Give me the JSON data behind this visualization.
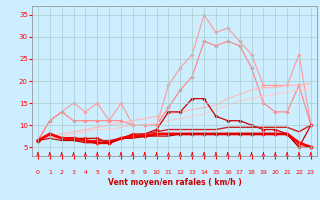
{
  "x": [
    0,
    1,
    2,
    3,
    4,
    5,
    6,
    7,
    8,
    9,
    10,
    11,
    12,
    13,
    14,
    15,
    16,
    17,
    18,
    19,
    20,
    21,
    22,
    23
  ],
  "series": [
    {
      "name": "line1_light_pink_markers",
      "color": "#ff9999",
      "linewidth": 0.8,
      "marker": "D",
      "markersize": 1.8,
      "y": [
        6.5,
        11,
        13,
        15,
        13,
        15,
        11,
        15,
        10,
        10,
        10,
        19,
        23,
        26,
        35,
        31,
        32,
        29,
        26,
        19,
        19,
        19,
        26,
        10
      ]
    },
    {
      "name": "line2_medium_pink_markers",
      "color": "#ff8080",
      "linewidth": 0.8,
      "marker": "D",
      "markersize": 1.8,
      "y": [
        6.5,
        11,
        13,
        11,
        11,
        11,
        11,
        11,
        10,
        10,
        10,
        14,
        18,
        21,
        29,
        28,
        29,
        28,
        23,
        15,
        13,
        13,
        19,
        10
      ]
    },
    {
      "name": "line3_diagonal_light",
      "color": "#ffbbbb",
      "linewidth": 0.9,
      "marker": null,
      "y": [
        6.5,
        7.5,
        8,
        8.5,
        9,
        9.5,
        10,
        10.5,
        11,
        11.5,
        12,
        12.5,
        13,
        13.5,
        14,
        14.5,
        16,
        17,
        18,
        18.5,
        18.5,
        19,
        19,
        19.5
      ]
    },
    {
      "name": "line4_diagonal_lighter",
      "color": "#ffcccc",
      "linewidth": 0.8,
      "marker": null,
      "y": [
        6.5,
        7,
        7.5,
        8,
        8.5,
        9,
        9,
        9.5,
        10,
        10,
        10.5,
        11,
        11.5,
        12,
        12.5,
        13.5,
        14.5,
        15.5,
        16,
        16.5,
        17,
        17.5,
        18,
        18
      ]
    },
    {
      "name": "line5_dark_red_markers",
      "color": "#cc0000",
      "linewidth": 0.9,
      "marker": "D",
      "markersize": 1.8,
      "y": [
        6.5,
        8,
        7,
        7,
        7,
        7,
        6,
        7,
        8,
        8,
        9,
        13,
        13,
        16,
        16,
        12,
        11,
        11,
        10,
        9,
        9,
        8,
        5,
        10
      ]
    },
    {
      "name": "line6_dark_flat",
      "color": "#cc2222",
      "linewidth": 1.0,
      "marker": null,
      "y": [
        6.5,
        8,
        7,
        6.5,
        6.5,
        6.5,
        6.5,
        7,
        7.5,
        8,
        8.5,
        9,
        9,
        9,
        9,
        9,
        9.5,
        9.5,
        9.5,
        9.5,
        9.5,
        9.5,
        8.5,
        10
      ]
    },
    {
      "name": "line7_bold_red_markers",
      "color": "#ff0000",
      "linewidth": 2.0,
      "marker": "D",
      "markersize": 2.2,
      "y": [
        6.5,
        8,
        7,
        7,
        6.5,
        6,
        6,
        7,
        7.5,
        7.5,
        8,
        8,
        8,
        8,
        8,
        8,
        8,
        8,
        8,
        8,
        8,
        8,
        6,
        5
      ]
    },
    {
      "name": "line8_bottom_thin",
      "color": "#bb0000",
      "linewidth": 0.8,
      "marker": null,
      "y": [
        6.5,
        7,
        6.5,
        6.5,
        6,
        6,
        6,
        7,
        7,
        7.5,
        7.5,
        7.5,
        8,
        8,
        8,
        8,
        8,
        8,
        8,
        8,
        8,
        8,
        5,
        5
      ]
    }
  ],
  "xlabel": "Vent moyen/en rafales ( km/h )",
  "ylim": [
    3,
    37
  ],
  "xlim": [
    -0.5,
    23.5
  ],
  "yticks": [
    5,
    10,
    15,
    20,
    25,
    30,
    35
  ],
  "xticks": [
    0,
    1,
    2,
    3,
    4,
    5,
    6,
    7,
    8,
    9,
    10,
    11,
    12,
    13,
    14,
    15,
    16,
    17,
    18,
    19,
    20,
    21,
    22,
    23
  ],
  "bg_color": "#cceeff",
  "grid_color": "#aacccc",
  "tick_color": "#ff0000",
  "label_color": "#cc0000"
}
